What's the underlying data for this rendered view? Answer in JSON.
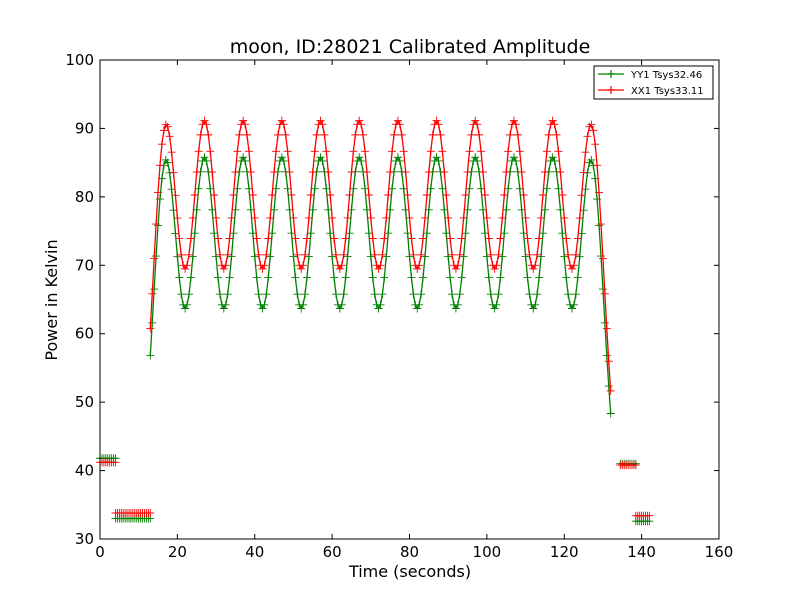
{
  "chart_data": {
    "type": "line",
    "title": "moon, ID:28021 Calibrated Amplitude",
    "xlabel": "Time (seconds)",
    "ylabel": "Power in Kelvin",
    "xlim": [
      0,
      160
    ],
    "ylim": [
      30,
      100
    ],
    "xticks": [
      0,
      20,
      40,
      60,
      80,
      100,
      120,
      140,
      160
    ],
    "yticks": [
      30,
      40,
      50,
      60,
      70,
      80,
      90,
      100
    ],
    "grid": false,
    "legend_position": "top-right",
    "marker": "+",
    "colors": {
      "YY1": "#008000",
      "XX1": "#ff0000"
    },
    "peak_times": [
      17,
      27,
      37,
      47,
      57,
      67,
      77,
      87,
      97,
      107,
      117,
      127
    ],
    "series": [
      {
        "name": "YY1 Tsys32.46",
        "color": "#008000",
        "profile": {
          "baseline": 33.0,
          "peak_value": 85.0,
          "peak_halfwidth": 3.2
        },
        "segments": [
          {
            "x": [
              0.0,
              0.5,
              1.0,
              1.5,
              2.0,
              2.5,
              3.0,
              3.5,
              4.0
            ],
            "y": [
              41.8,
              41.8,
              41.8,
              41.8,
              41.8,
              41.8,
              41.8,
              41.8,
              41.8
            ]
          },
          {
            "x": [
              4.0,
              4.5,
              5.0,
              5.5,
              6.0,
              6.5,
              7.0,
              7.5,
              8.0,
              8.5,
              9.0,
              9.5,
              10.0,
              10.5,
              11.0,
              11.5,
              12.0,
              12.5,
              13.0
            ],
            "y": [
              33.0,
              33.0,
              33.0,
              33.0,
              33.0,
              33.0,
              33.0,
              33.0,
              33.0,
              33.0,
              33.0,
              33.0,
              33.0,
              33.0,
              33.0,
              33.0,
              33.0,
              33.0,
              33.0
            ]
          },
          {
            "x": [
              134.5,
              135.0,
              135.5,
              136.0,
              136.5,
              137.0,
              137.5,
              138.0,
              138.5
            ],
            "y": [
              41.0,
              41.0,
              41.0,
              41.0,
              41.0,
              41.0,
              41.0,
              41.0,
              41.0
            ]
          },
          {
            "x": [
              138.5,
              139.0,
              139.5,
              140.0,
              140.5,
              141.0,
              141.5,
              142.0
            ],
            "y": [
              32.6,
              32.6,
              32.6,
              32.6,
              32.6,
              32.6,
              32.6,
              32.6
            ]
          }
        ]
      },
      {
        "name": "XX1 Tsys33.11",
        "color": "#ff0000",
        "profile": {
          "baseline": 33.8,
          "peak_value": 90.0,
          "peak_halfwidth": 3.3
        },
        "segments": [
          {
            "x": [
              0.0,
              0.5,
              1.0,
              1.5,
              2.0,
              2.5,
              3.0,
              3.5,
              4.0
            ],
            "y": [
              41.2,
              41.2,
              41.2,
              41.2,
              41.2,
              41.2,
              41.2,
              41.2,
              41.2
            ]
          },
          {
            "x": [
              4.0,
              4.5,
              5.0,
              5.5,
              6.0,
              6.5,
              7.0,
              7.5,
              8.0,
              8.5,
              9.0,
              9.5,
              10.0,
              10.5,
              11.0,
              11.5,
              12.0,
              12.5,
              13.0
            ],
            "y": [
              33.8,
              33.8,
              33.8,
              33.8,
              33.8,
              33.8,
              33.8,
              33.8,
              33.8,
              33.8,
              33.8,
              33.8,
              33.8,
              33.8,
              33.8,
              33.8,
              33.8,
              33.8,
              33.8
            ]
          },
          {
            "x": [
              134.5,
              135.0,
              135.5,
              136.0,
              136.5,
              137.0,
              137.5,
              138.0,
              138.5
            ],
            "y": [
              40.8,
              40.8,
              40.8,
              40.8,
              40.8,
              40.8,
              40.8,
              40.8,
              40.8
            ]
          },
          {
            "x": [
              138.5,
              139.0,
              139.5,
              140.0,
              140.5,
              141.0,
              141.5,
              142.0
            ],
            "y": [
              33.4,
              33.4,
              33.4,
              33.4,
              33.4,
              33.4,
              33.4,
              33.4
            ]
          }
        ]
      }
    ]
  }
}
